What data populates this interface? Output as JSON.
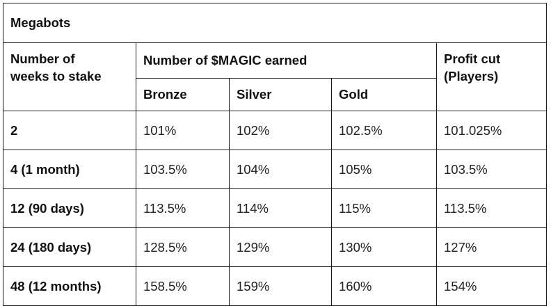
{
  "title": "Megabots",
  "headers": {
    "weeks_line1": "Number of",
    "weeks_line2": "weeks to stake",
    "magic": "Number of $MAGIC earned",
    "profit_line1": "Profit cut",
    "profit_line2": "(Players)",
    "bronze": "Bronze",
    "silver": "Silver",
    "gold": "Gold"
  },
  "rows": [
    {
      "weeks": "2",
      "bronze": "101%",
      "silver": "102%",
      "gold": "102.5%",
      "profit": "101.025%"
    },
    {
      "weeks": "4 (1 month)",
      "bronze": "103.5%",
      "silver": "104%",
      "gold": "105%",
      "profit": "103.5%"
    },
    {
      "weeks": "12 (90 days)",
      "bronze": "113.5%",
      "silver": "114%",
      "gold": "115%",
      "profit": "113.5%"
    },
    {
      "weeks": "24 (180 days)",
      "bronze": "128.5%",
      "silver": "129%",
      "gold": "130%",
      "profit": "127%"
    },
    {
      "weeks": "48 (12 months)",
      "bronze": "158.5%",
      "silver": "159%",
      "gold": "160%",
      "profit": "154%"
    }
  ]
}
